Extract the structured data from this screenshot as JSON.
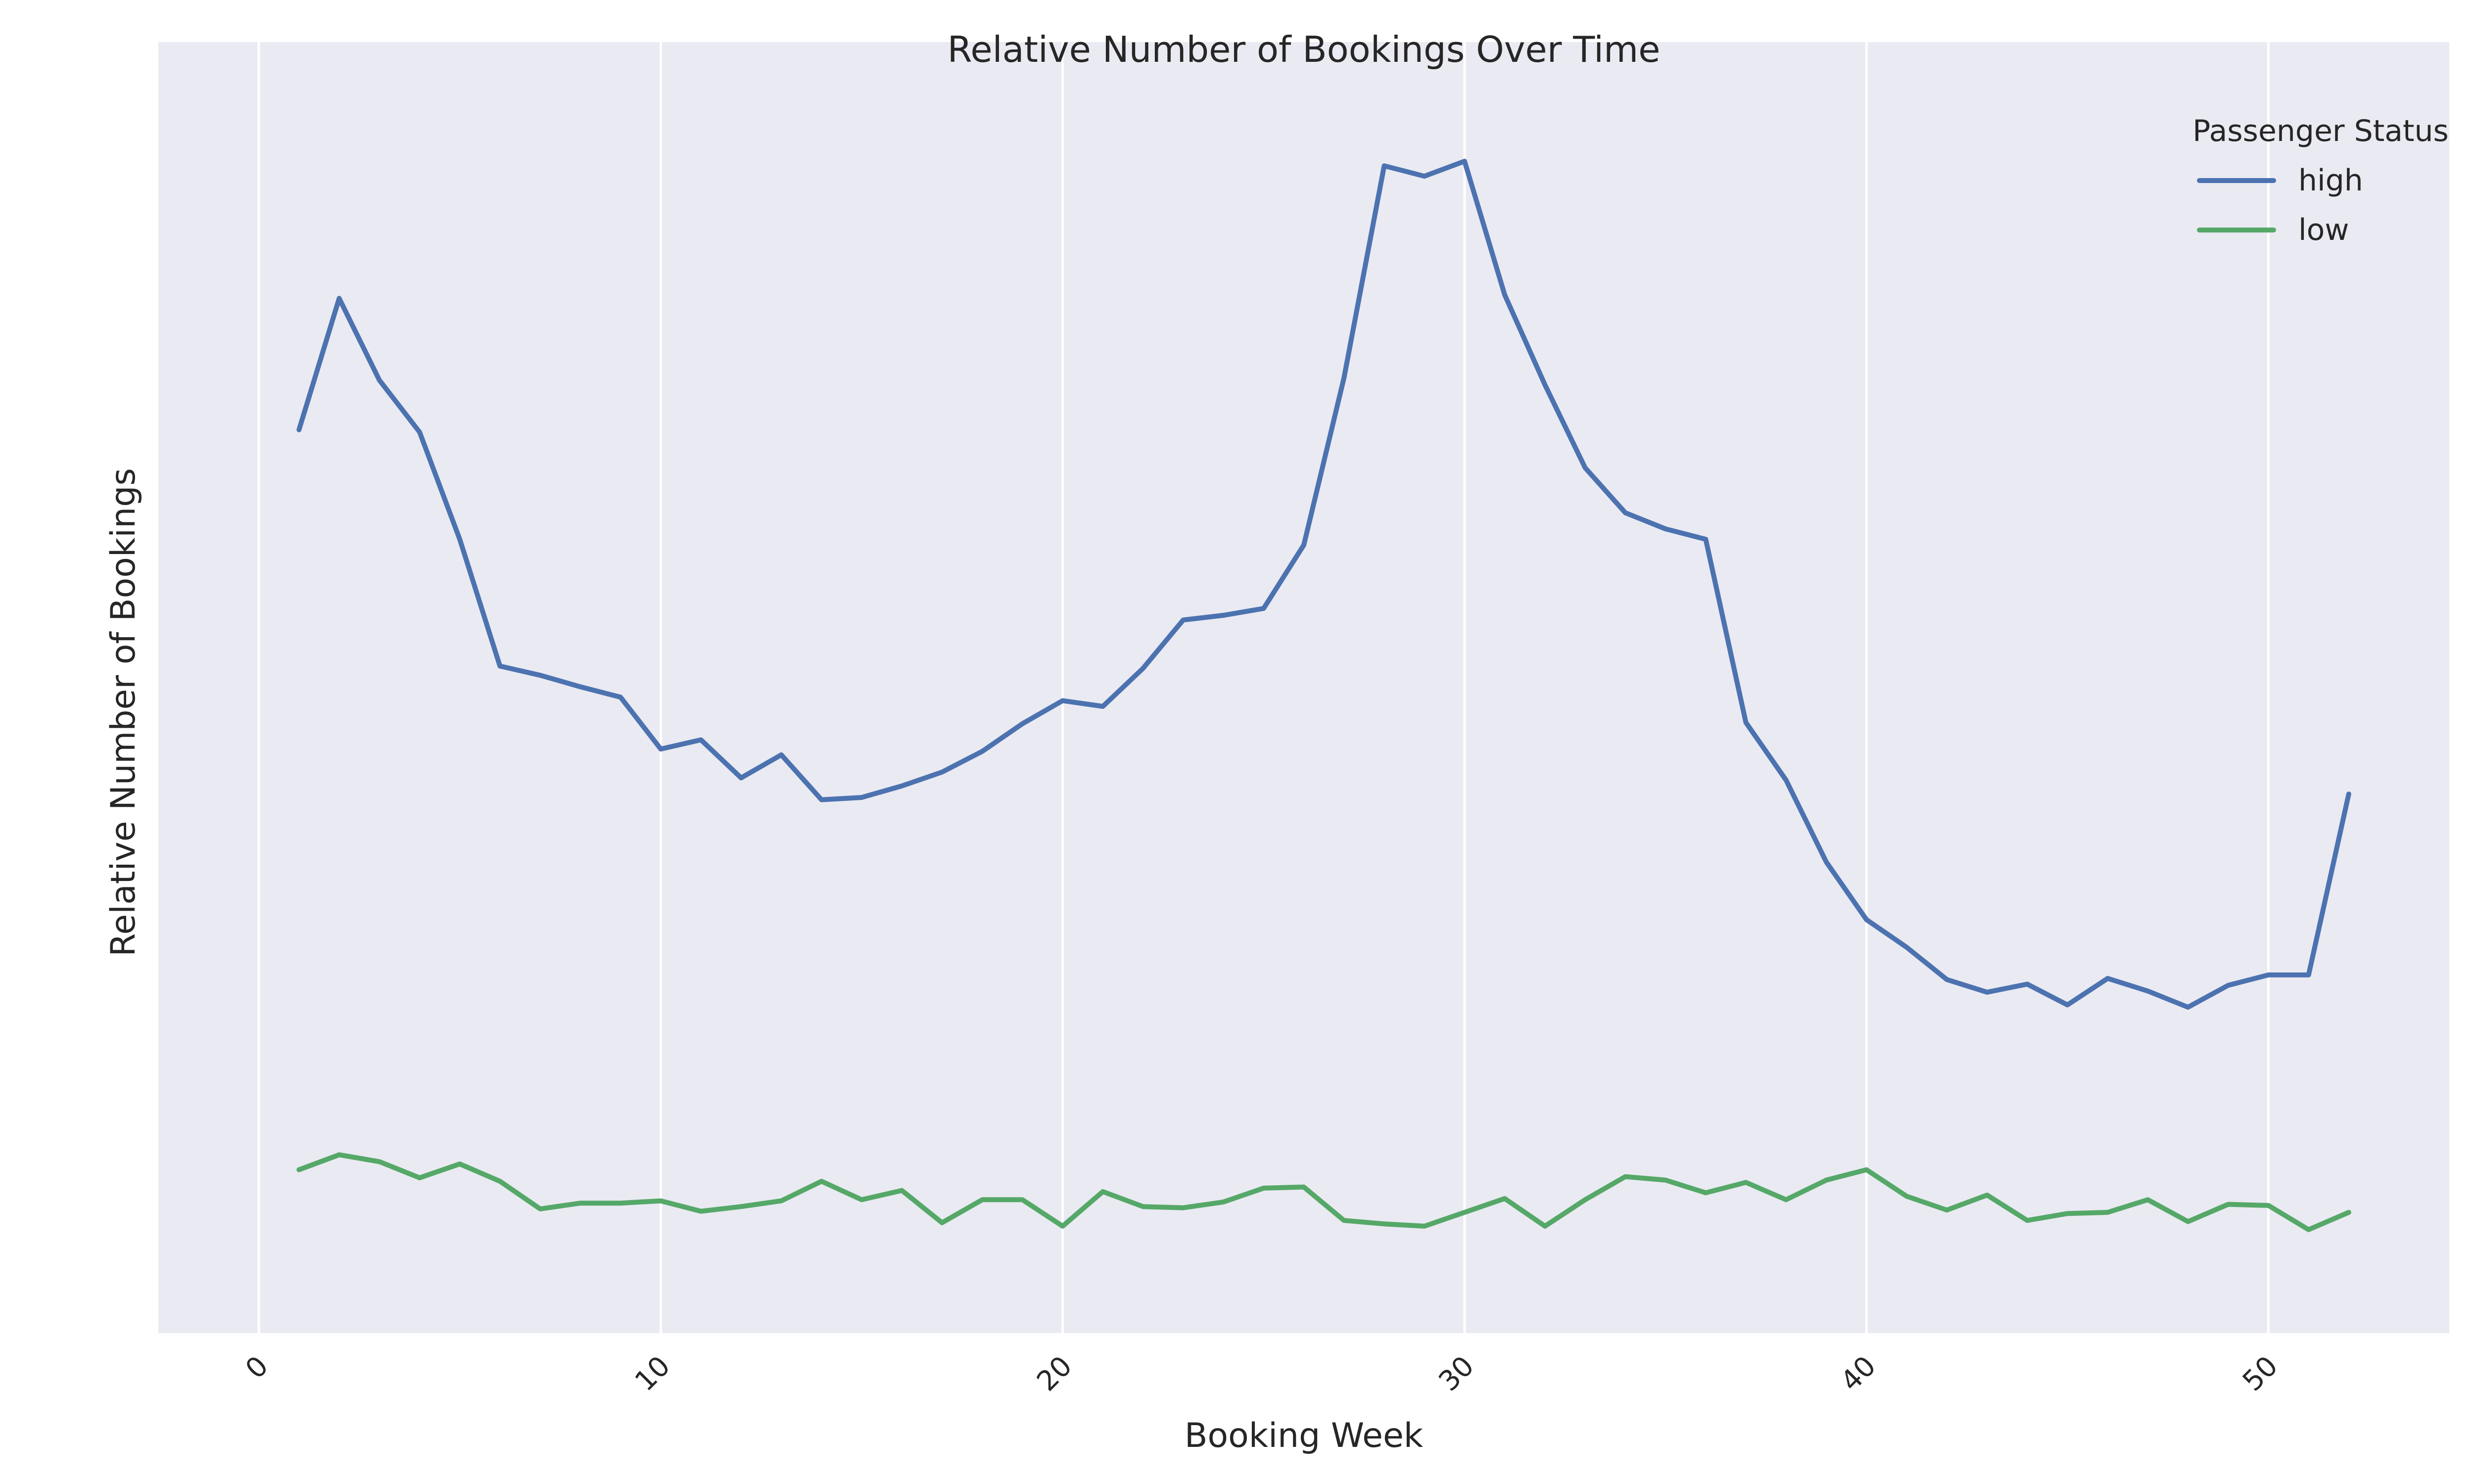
{
  "chart_data": {
    "type": "line",
    "title": "Relative Number of Bookings Over Time",
    "xlabel": "Booking Week",
    "ylabel": "Relative Number of Bookings",
    "xlim": [
      -2.5,
      54.5
    ],
    "ylim": [
      0,
      1
    ],
    "x_ticks": [
      0,
      10,
      20,
      30,
      40,
      50
    ],
    "x_tick_labels": [
      "0",
      "10",
      "20",
      "30",
      "40",
      "50"
    ],
    "y_ticks_shown": false,
    "grid": "vertical",
    "background_color": "#eaeaf2",
    "legend": {
      "title": "Passenger Status",
      "placement": "top-right"
    },
    "x": [
      1,
      2,
      3,
      4,
      5,
      6,
      7,
      8,
      9,
      10,
      11,
      12,
      13,
      14,
      15,
      16,
      17,
      18,
      19,
      20,
      21,
      22,
      23,
      24,
      25,
      26,
      27,
      28,
      29,
      30,
      31,
      32,
      33,
      34,
      35,
      36,
      37,
      38,
      39,
      40,
      41,
      42,
      43,
      44,
      45,
      46,
      47,
      48,
      49,
      50,
      51,
      52
    ],
    "series": [
      {
        "name": "high",
        "color": "#4c72b0",
        "values": [
          0.743,
          0.857,
          0.786,
          0.741,
          0.648,
          0.538,
          0.53,
          0.52,
          0.511,
          0.466,
          0.474,
          0.441,
          0.461,
          0.422,
          0.424,
          0.434,
          0.446,
          0.464,
          0.488,
          0.508,
          0.503,
          0.536,
          0.578,
          0.582,
          0.588,
          0.643,
          0.788,
          0.972,
          0.963,
          0.976,
          0.86,
          0.782,
          0.71,
          0.671,
          0.657,
          0.648,
          0.489,
          0.439,
          0.368,
          0.318,
          0.294,
          0.266,
          0.255,
          0.262,
          0.244,
          0.267,
          0.256,
          0.242,
          0.261,
          0.27,
          0.27,
          0.427
        ]
      },
      {
        "name": "low",
        "color": "#55a868",
        "values": [
          0.101,
          0.114,
          0.108,
          0.094,
          0.106,
          0.091,
          0.067,
          0.072,
          0.072,
          0.074,
          0.065,
          0.069,
          0.074,
          0.091,
          0.075,
          0.083,
          0.055,
          0.075,
          0.075,
          0.052,
          0.082,
          0.069,
          0.068,
          0.073,
          0.085,
          0.086,
          0.057,
          0.054,
          0.052,
          0.064,
          0.076,
          0.052,
          0.075,
          0.095,
          0.092,
          0.081,
          0.09,
          0.075,
          0.092,
          0.101,
          0.078,
          0.066,
          0.079,
          0.057,
          0.063,
          0.064,
          0.075,
          0.056,
          0.071,
          0.07,
          0.049,
          0.064
        ]
      }
    ]
  }
}
